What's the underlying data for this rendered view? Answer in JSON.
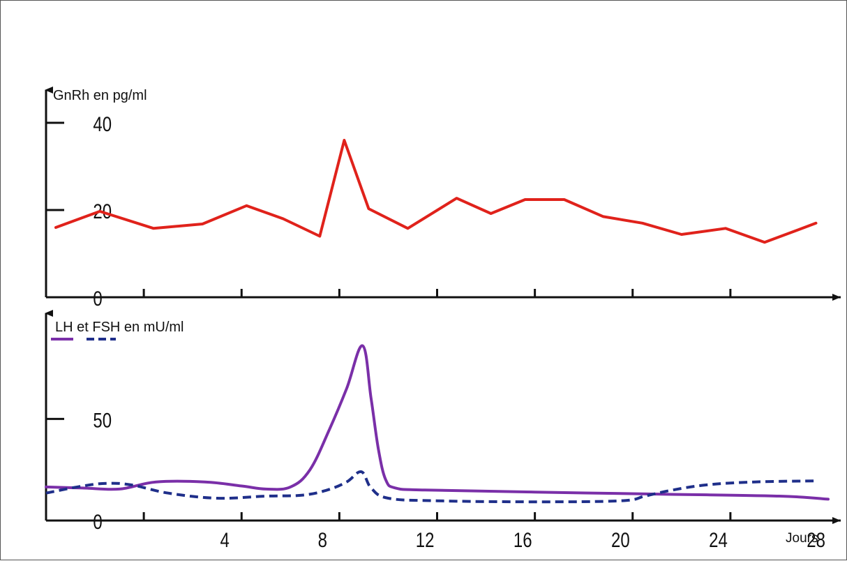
{
  "chart_data": [
    {
      "type": "line",
      "ylabel": "GnRh en pg/ml",
      "ylim": [
        0,
        48
      ],
      "yticks": [
        0,
        20,
        40
      ],
      "xlim": [
        0,
        32
      ],
      "xticks": [
        4,
        8,
        12,
        16,
        20,
        24,
        28
      ],
      "series": [
        {
          "color": "#e0221b",
          "x": [
            0.4,
            2.2,
            4.4,
            6.4,
            8.2,
            9.7,
            11.2,
            12.2,
            13.2,
            14.8,
            16.8,
            18.2,
            19.6,
            21.2,
            22.8,
            24.4,
            26.0,
            27.8,
            29.4,
            31.5
          ],
          "y": [
            16,
            19.7,
            15.8,
            16.8,
            21,
            18,
            14,
            36,
            20.3,
            15.8,
            22.7,
            19.2,
            22.4,
            22.4,
            18.5,
            17,
            14.4,
            15.8,
            12.6,
            17
          ]
        }
      ]
    },
    {
      "type": "line",
      "ylabel": "LH et FSH en mU/ml",
      "ylim": [
        0,
        103
      ],
      "yticks": [
        0,
        50
      ],
      "xlim": [
        0,
        32
      ],
      "xticks": [
        4,
        8,
        12,
        16,
        20,
        24,
        28
      ],
      "xticklabels": [
        "4",
        "8",
        "12",
        "16",
        "20",
        "24",
        "28"
      ],
      "xlabel": "Jours",
      "legend": "top-left",
      "series": [
        {
          "color": "#7a2fa8",
          "style": "solid",
          "x": [
            0,
            1.5,
            3,
            4.5,
            6.5,
            8,
            9,
            10,
            10.8,
            11.6,
            12.3,
            12.95,
            13.3,
            13.6,
            13.9,
            14.3,
            15.5,
            20,
            25,
            30,
            32
          ],
          "y": [
            16.5,
            16,
            15.5,
            19,
            19,
            17,
            15.5,
            16.5,
            25,
            45,
            65,
            86,
            60,
            35,
            20,
            16,
            15,
            14,
            13,
            12,
            10.5
          ]
        },
        {
          "color": "#1f2f8a",
          "style": "dashed",
          "x": [
            0,
            1.5,
            2.5,
            3.5,
            5,
            7,
            9,
            10.5,
            11.5,
            12.3,
            12.9,
            13.3,
            14,
            16,
            20,
            23.5,
            24.5,
            25.5,
            27,
            29,
            31.5
          ],
          "y": [
            13.5,
            17,
            18.3,
            17.5,
            13.5,
            11,
            12,
            12.5,
            15,
            19,
            24,
            16,
            11,
            9.7,
            9.2,
            9.7,
            12,
            14.7,
            17.5,
            19,
            19.5
          ]
        }
      ]
    }
  ]
}
